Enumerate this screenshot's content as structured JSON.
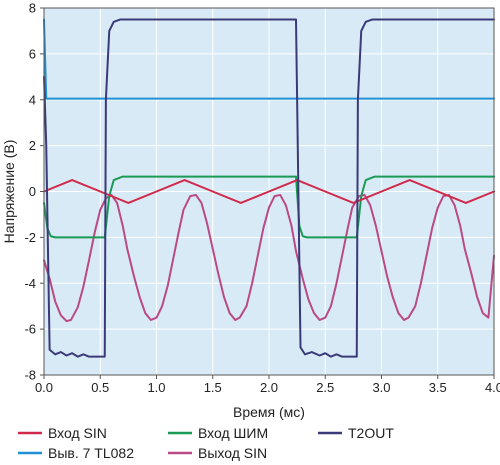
{
  "chart_data": {
    "type": "line",
    "xlabel": "Время (мс)",
    "ylabel": "Напряжение (В)",
    "xlim": [
      0,
      4
    ],
    "ylim": [
      -8,
      8
    ],
    "x_ticks": [
      "0.0",
      "0.5",
      "1.0",
      "1.5",
      "2.0",
      "2.5",
      "3.0",
      "3.5",
      "4.0"
    ],
    "y_ticks": [
      "8",
      "6",
      "4",
      "2",
      "0",
      "-2",
      "-4",
      "-6",
      "-8"
    ],
    "grid": true,
    "background": "#d9eaf7",
    "legend_position": "bottom",
    "series": [
      {
        "name": "Вход SIN",
        "color": "#d02a4a",
        "x": [
          0,
          0.25,
          0.5,
          0.75,
          1.0,
          1.25,
          1.5,
          1.75,
          2.0,
          2.25,
          2.5,
          2.75,
          3.0,
          3.25,
          3.5,
          3.75,
          4.0
        ],
        "y": [
          0,
          0.5,
          0,
          -0.5,
          0,
          0.5,
          0,
          -0.5,
          0,
          0.5,
          0,
          -0.5,
          0,
          0.5,
          0,
          -0.5,
          0
        ]
      },
      {
        "name": "Вход ШИМ",
        "color": "#1a9a55",
        "x": [
          0,
          0.03,
          0.06,
          0.1,
          0.54,
          0.58,
          0.62,
          0.7,
          2.24,
          2.27,
          2.3,
          2.34,
          2.78,
          2.82,
          2.86,
          2.94,
          4.0
        ],
        "y": [
          -0.5,
          -1.6,
          -1.95,
          -2.0,
          -2.0,
          -0.2,
          0.5,
          0.65,
          0.65,
          -1.5,
          -1.95,
          -2.0,
          -2.0,
          -0.2,
          0.5,
          0.65,
          0.65
        ]
      },
      {
        "name": "T2OUT",
        "color": "#3a3a78",
        "x": [
          0,
          0.02,
          0.05,
          0.1,
          0.15,
          0.2,
          0.25,
          0.3,
          0.35,
          0.4,
          0.54,
          0.55,
          0.58,
          0.62,
          0.68,
          0.75,
          2.24,
          2.25,
          2.28,
          2.32,
          2.38,
          2.45,
          2.5,
          2.55,
          2.6,
          2.65,
          2.78,
          2.79,
          2.82,
          2.86,
          2.92,
          3.0,
          4.0
        ],
        "y": [
          5,
          2,
          -6.9,
          -7.1,
          -7.0,
          -7.15,
          -7.05,
          -7.2,
          -7.1,
          -7.2,
          -7.2,
          4,
          7.0,
          7.4,
          7.5,
          7.5,
          7.5,
          4,
          -6.8,
          -7.1,
          -7.0,
          -7.15,
          -7.05,
          -7.2,
          -7.1,
          -7.2,
          -7.2,
          4,
          7.0,
          7.4,
          7.5,
          7.5,
          7.5
        ]
      },
      {
        "name": "Выв. 7 TL082",
        "color": "#1f8fd6",
        "x": [
          0,
          0.02,
          4.0
        ],
        "y": [
          7.5,
          4.05,
          4.05
        ]
      },
      {
        "name": "Выход SIN",
        "color": "#b94a85",
        "x": [
          0,
          0.05,
          0.1,
          0.15,
          0.2,
          0.24,
          0.3,
          0.35,
          0.4,
          0.45,
          0.5,
          0.55,
          0.6,
          0.65,
          0.7,
          0.74,
          0.8,
          0.85,
          0.9,
          0.95,
          1.0,
          1.05,
          1.1,
          1.15,
          1.2,
          1.24,
          1.3,
          1.35,
          1.4,
          1.45,
          1.5,
          1.55,
          1.6,
          1.65,
          1.7,
          1.74,
          1.8,
          1.85,
          1.9,
          1.95,
          2.0,
          2.05,
          2.1,
          2.15,
          2.2,
          2.24,
          2.3,
          2.35,
          2.4,
          2.45,
          2.5,
          2.55,
          2.6,
          2.65,
          2.7,
          2.74,
          2.8,
          2.85,
          2.9,
          2.95,
          3.0,
          3.05,
          3.1,
          3.15,
          3.2,
          3.24,
          3.3,
          3.35,
          3.4,
          3.45,
          3.5,
          3.55,
          3.6,
          3.65,
          3.7,
          3.74,
          3.8,
          3.85,
          3.9,
          3.95,
          4.0
        ],
        "y": [
          -3.0,
          -3.8,
          -4.8,
          -5.4,
          -5.65,
          -5.6,
          -5.05,
          -4.15,
          -3.0,
          -1.8,
          -0.8,
          -0.3,
          -0.15,
          -0.5,
          -1.5,
          -2.5,
          -3.7,
          -4.6,
          -5.3,
          -5.6,
          -5.5,
          -5.0,
          -4.1,
          -2.9,
          -1.7,
          -0.8,
          -0.2,
          -0.15,
          -0.5,
          -1.4,
          -2.5,
          -3.6,
          -4.6,
          -5.3,
          -5.6,
          -5.5,
          -5.0,
          -4.0,
          -2.8,
          -1.6,
          -0.7,
          -0.2,
          -0.15,
          -0.6,
          -1.5,
          -2.6,
          -3.8,
          -4.7,
          -5.3,
          -5.6,
          -5.5,
          -5.0,
          -4.0,
          -2.8,
          -1.6,
          -0.7,
          -0.2,
          -0.15,
          -0.6,
          -1.5,
          -2.6,
          -3.7,
          -4.6,
          -5.3,
          -5.6,
          -5.5,
          -5.0,
          -4.0,
          -2.8,
          -1.6,
          -0.7,
          -0.2,
          -0.15,
          -0.6,
          -1.5,
          -2.5,
          -3.6,
          -4.6,
          -5.3,
          -5.5,
          -2.8
        ]
      }
    ],
    "legend": [
      {
        "label": "Вход SIN",
        "color": "#d02a4a"
      },
      {
        "label": "Вход ШИМ",
        "color": "#1a9a55"
      },
      {
        "label": "T2OUT",
        "color": "#3a3a78"
      },
      {
        "label": "Выв. 7 TL082",
        "color": "#1f8fd6"
      },
      {
        "label": "Выход SIN",
        "color": "#b94a85"
      }
    ]
  }
}
